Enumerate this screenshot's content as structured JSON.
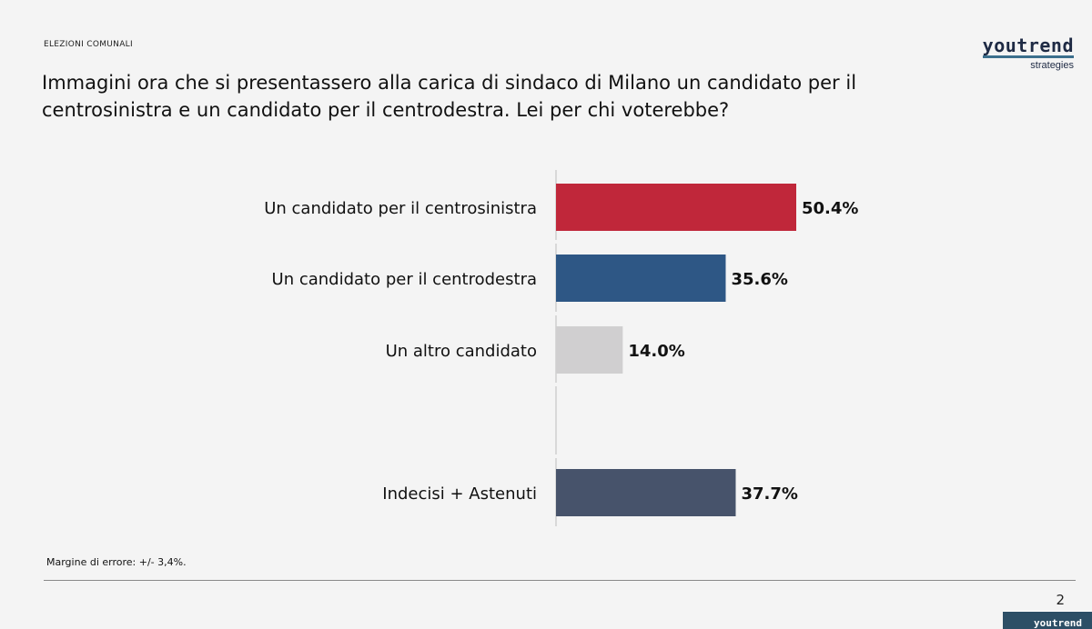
{
  "header": {
    "section_label": "ELEZIONI COMUNALI",
    "title": "Immagini ora che si presentassero alla carica di sindaco di Milano un candidato per il centrosinistra e un candidato per il centrodestra. Lei per chi voterebbe?"
  },
  "logo": {
    "word": "youtrend",
    "sub": "strategies"
  },
  "chart_data": {
    "type": "bar",
    "orientation": "horizontal",
    "title": "",
    "xlabel": "",
    "ylabel": "",
    "xlim": [
      0,
      100
    ],
    "grid": false,
    "categories": [
      "Un candidato per il centrosinistra",
      "Un candidato per il centrodestra",
      "Un altro candidato",
      "Indecisi + Astenuti"
    ],
    "values": [
      50.4,
      35.6,
      14.0,
      37.7
    ],
    "labels": [
      "50.4%",
      "35.6%",
      "14.0%",
      "37.7%"
    ],
    "colors": [
      "#c0273a",
      "#2e5785",
      "#d0cfd0",
      "#47536b"
    ]
  },
  "footer": {
    "note": "Margine di errore: +/- 3,4%.",
    "page_number": "2",
    "corner_word": "youtrend"
  }
}
